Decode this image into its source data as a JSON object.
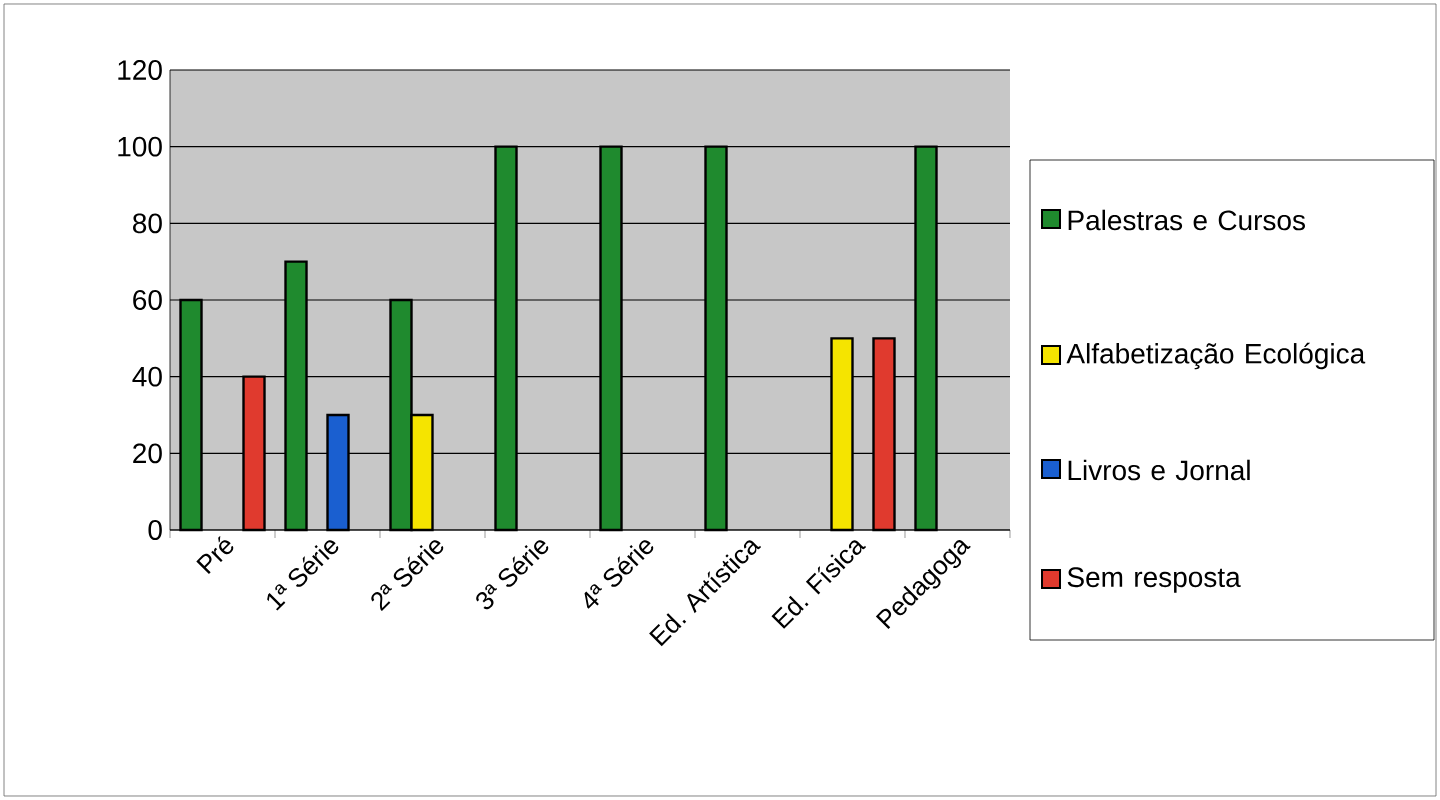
{
  "chart_data": {
    "type": "bar",
    "categories": [
      "Pré",
      "1ª Série",
      "2ª Série",
      "3ª Série",
      "4ª Série",
      "Ed. Artística",
      "Ed. Física",
      "Pedagoga"
    ],
    "series": [
      {
        "name": "Palestras e Cursos",
        "color": "#1f8a2e",
        "values": [
          60,
          70,
          60,
          100,
          100,
          100,
          null,
          100
        ]
      },
      {
        "name": "Alfabetização Ecológica",
        "color": "#f5e400",
        "values": [
          null,
          null,
          30,
          null,
          null,
          null,
          50,
          null
        ]
      },
      {
        "name": "Livros e Jornal",
        "color": "#1a5fd0",
        "values": [
          null,
          30,
          null,
          null,
          null,
          null,
          null,
          null
        ]
      },
      {
        "name": "Sem resposta",
        "color": "#e03a2e",
        "values": [
          40,
          null,
          null,
          null,
          null,
          null,
          50,
          null
        ]
      }
    ],
    "ylim": [
      0,
      120
    ],
    "yticks": [
      0,
      20,
      40,
      60,
      80,
      100,
      120
    ],
    "grid": "y",
    "legend": "right"
  }
}
